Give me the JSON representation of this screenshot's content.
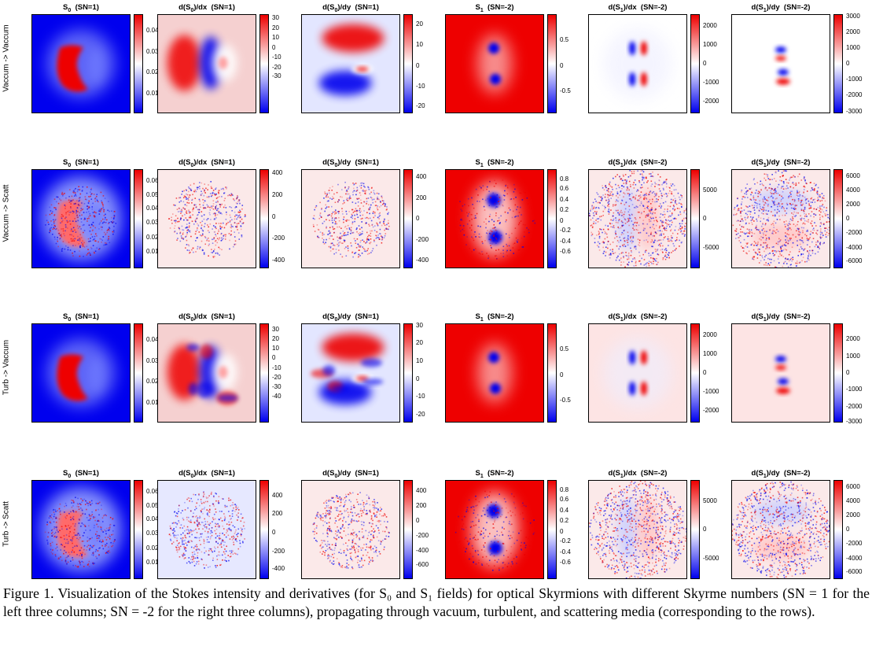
{
  "colors": {
    "positive": "#ee0000",
    "zero": "#ffffff",
    "negative": "#0000ee"
  },
  "rows": [
    {
      "label": "Vaccum -> Vaccum",
      "noise": "smooth",
      "panels": [
        {
          "title_main": "S",
          "title_sub": "0",
          "title_rest": "  (SN=1)",
          "ticks": [
            {
              "label": "0.04",
              "frac": 0.83
            },
            {
              "label": "0.03",
              "frac": 0.62
            },
            {
              "label": "0.02",
              "frac": 0.41
            },
            {
              "label": "0.01",
              "frac": 0.2
            }
          ]
        },
        {
          "title_main": "d(S",
          "title_sub": "0",
          "title_rest": ")/dx  (SN=1)",
          "ticks": [
            {
              "label": "30",
              "frac": 0.96
            },
            {
              "label": "20",
              "frac": 0.86
            },
            {
              "label": "10",
              "frac": 0.76
            },
            {
              "label": "0",
              "frac": 0.66
            },
            {
              "label": "-10",
              "frac": 0.56
            },
            {
              "label": "-20",
              "frac": 0.46
            },
            {
              "label": "-30",
              "frac": 0.37
            }
          ]
        },
        {
          "title_main": "d(S",
          "title_sub": "0",
          "title_rest": ")/dy  (SN=1)",
          "ticks": [
            {
              "label": "20",
              "frac": 0.9
            },
            {
              "label": "10",
              "frac": 0.69
            },
            {
              "label": "0",
              "frac": 0.48
            },
            {
              "label": "-10",
              "frac": 0.27
            },
            {
              "label": "-20",
              "frac": 0.07
            }
          ]
        },
        {
          "title_main": "S",
          "title_sub": "1",
          "title_rest": "  (SN=-2)",
          "ticks": [
            {
              "label": "0.5",
              "frac": 0.74
            },
            {
              "label": "0",
              "frac": 0.48
            },
            {
              "label": "-0.5",
              "frac": 0.22
            }
          ]
        },
        {
          "title_main": "d(S",
          "title_sub": "1",
          "title_rest": ")/dx  (SN=-2)",
          "ticks": [
            {
              "label": "2000",
              "frac": 0.88
            },
            {
              "label": "1000",
              "frac": 0.69
            },
            {
              "label": "0",
              "frac": 0.5
            },
            {
              "label": "-1000",
              "frac": 0.31
            },
            {
              "label": "-2000",
              "frac": 0.12
            }
          ]
        },
        {
          "title_main": "d(S",
          "title_sub": "1",
          "title_rest": ")/dy  (SN=-2)",
          "ticks": [
            {
              "label": "3000",
              "frac": 0.98
            },
            {
              "label": "2000",
              "frac": 0.82
            },
            {
              "label": "1000",
              "frac": 0.66
            },
            {
              "label": "0",
              "frac": 0.5
            },
            {
              "label": "-1000",
              "frac": 0.34
            },
            {
              "label": "-2000",
              "frac": 0.18
            },
            {
              "label": "-3000",
              "frac": 0.02
            }
          ]
        }
      ]
    },
    {
      "label": "Vaccum -> Scatt",
      "noise": "scatter",
      "panels": [
        {
          "title_main": "S",
          "title_sub": "0",
          "title_rest": "  (SN=1)",
          "ticks": [
            {
              "label": "0.06",
              "frac": 0.88
            },
            {
              "label": "0.05",
              "frac": 0.74
            },
            {
              "label": "0.04",
              "frac": 0.6
            },
            {
              "label": "0.03",
              "frac": 0.46
            },
            {
              "label": "0.02",
              "frac": 0.31
            },
            {
              "label": "0.01",
              "frac": 0.17
            }
          ]
        },
        {
          "title_main": "d(S",
          "title_sub": "0",
          "title_rest": ")/dx  (SN=1)",
          "ticks": [
            {
              "label": "400",
              "frac": 0.96
            },
            {
              "label": "200",
              "frac": 0.74
            },
            {
              "label": "0",
              "frac": 0.52
            },
            {
              "label": "-200",
              "frac": 0.3
            },
            {
              "label": "-400",
              "frac": 0.08
            }
          ]
        },
        {
          "title_main": "d(S",
          "title_sub": "0",
          "title_rest": ")/dy  (SN=1)",
          "ticks": [
            {
              "label": "400",
              "frac": 0.92
            },
            {
              "label": "200",
              "frac": 0.71
            },
            {
              "label": "0",
              "frac": 0.5
            },
            {
              "label": "-200",
              "frac": 0.29
            },
            {
              "label": "-400",
              "frac": 0.08
            }
          ]
        },
        {
          "title_main": "S",
          "title_sub": "1",
          "title_rest": "  (SN=-2)",
          "ticks": [
            {
              "label": "0.8",
              "frac": 0.9
            },
            {
              "label": "0.6",
              "frac": 0.8
            },
            {
              "label": "0.4",
              "frac": 0.69
            },
            {
              "label": "0.2",
              "frac": 0.59
            },
            {
              "label": "0",
              "frac": 0.48
            },
            {
              "label": "-0.2",
              "frac": 0.38
            },
            {
              "label": "-0.4",
              "frac": 0.27
            },
            {
              "label": "-0.6",
              "frac": 0.17
            }
          ]
        },
        {
          "title_main": "d(S",
          "title_sub": "1",
          "title_rest": ")/dx  (SN=-2)",
          "ticks": [
            {
              "label": "5000",
              "frac": 0.79
            },
            {
              "label": "0",
              "frac": 0.5
            },
            {
              "label": "-5000",
              "frac": 0.21
            }
          ]
        },
        {
          "title_main": "d(S",
          "title_sub": "1",
          "title_rest": ")/dy  (SN=-2)",
          "ticks": [
            {
              "label": "6000",
              "frac": 0.93
            },
            {
              "label": "4000",
              "frac": 0.79
            },
            {
              "label": "2000",
              "frac": 0.64
            },
            {
              "label": "0",
              "frac": 0.5
            },
            {
              "label": "-2000",
              "frac": 0.36
            },
            {
              "label": "-4000",
              "frac": 0.21
            },
            {
              "label": "-6000",
              "frac": 0.07
            }
          ]
        }
      ]
    },
    {
      "label": "Turb -> Vaccum",
      "noise": "turb",
      "panels": [
        {
          "title_main": "S",
          "title_sub": "0",
          "title_rest": "  (SN=1)",
          "ticks": [
            {
              "label": "0.04",
              "frac": 0.83
            },
            {
              "label": "0.03",
              "frac": 0.62
            },
            {
              "label": "0.02",
              "frac": 0.41
            },
            {
              "label": "0.01",
              "frac": 0.2
            }
          ]
        },
        {
          "title_main": "d(S",
          "title_sub": "0",
          "title_rest": ")/dx  (SN=1)",
          "ticks": [
            {
              "label": "30",
              "frac": 0.94
            },
            {
              "label": "20",
              "frac": 0.84
            },
            {
              "label": "10",
              "frac": 0.75
            },
            {
              "label": "0",
              "frac": 0.65
            },
            {
              "label": "-10",
              "frac": 0.55
            },
            {
              "label": "-20",
              "frac": 0.45
            },
            {
              "label": "-30",
              "frac": 0.36
            },
            {
              "label": "-40",
              "frac": 0.26
            }
          ]
        },
        {
          "title_main": "d(S",
          "title_sub": "0",
          "title_rest": ")/dy  (SN=1)",
          "ticks": [
            {
              "label": "30",
              "frac": 0.98
            },
            {
              "label": "20",
              "frac": 0.8
            },
            {
              "label": "10",
              "frac": 0.62
            },
            {
              "label": "0",
              "frac": 0.44
            },
            {
              "label": "-10",
              "frac": 0.26
            },
            {
              "label": "-20",
              "frac": 0.08
            }
          ]
        },
        {
          "title_main": "S",
          "title_sub": "1",
          "title_rest": "  (SN=-2)",
          "ticks": [
            {
              "label": "0.5",
              "frac": 0.74
            },
            {
              "label": "0",
              "frac": 0.48
            },
            {
              "label": "-0.5",
              "frac": 0.22
            }
          ]
        },
        {
          "title_main": "d(S",
          "title_sub": "1",
          "title_rest": ")/dx  (SN=-2)",
          "ticks": [
            {
              "label": "2000",
              "frac": 0.88
            },
            {
              "label": "1000",
              "frac": 0.69
            },
            {
              "label": "0",
              "frac": 0.5
            },
            {
              "label": "-1000",
              "frac": 0.31
            },
            {
              "label": "-2000",
              "frac": 0.12
            }
          ]
        },
        {
          "title_main": "d(S",
          "title_sub": "1",
          "title_rest": ")/dy  (SN=-2)",
          "ticks": [
            {
              "label": "2000",
              "frac": 0.84
            },
            {
              "label": "1000",
              "frac": 0.67
            },
            {
              "label": "0",
              "frac": 0.5
            },
            {
              "label": "-1000",
              "frac": 0.33
            },
            {
              "label": "-2000",
              "frac": 0.16
            },
            {
              "label": "-3000",
              "frac": 0.01
            }
          ]
        }
      ]
    },
    {
      "label": "Turb -> Scatt",
      "noise": "scatter",
      "panels": [
        {
          "title_main": "S",
          "title_sub": "0",
          "title_rest": "  (SN=1)",
          "ticks": [
            {
              "label": "0.06",
              "frac": 0.88
            },
            {
              "label": "0.05",
              "frac": 0.74
            },
            {
              "label": "0.04",
              "frac": 0.6
            },
            {
              "label": "0.03",
              "frac": 0.46
            },
            {
              "label": "0.02",
              "frac": 0.31
            },
            {
              "label": "0.01",
              "frac": 0.17
            }
          ]
        },
        {
          "title_main": "d(S",
          "title_sub": "0",
          "title_rest": ")/dx  (SN=1)",
          "ticks": [
            {
              "label": "400",
              "frac": 0.84
            },
            {
              "label": "200",
              "frac": 0.66
            },
            {
              "label": "0",
              "frac": 0.47
            },
            {
              "label": "-200",
              "frac": 0.28
            },
            {
              "label": "-400",
              "frac": 0.1
            }
          ]
        },
        {
          "title_main": "d(S",
          "title_sub": "0",
          "title_rest": ")/dy  (SN=1)",
          "ticks": [
            {
              "label": "400",
              "frac": 0.89
            },
            {
              "label": "200",
              "frac": 0.74
            },
            {
              "label": "0",
              "frac": 0.59
            },
            {
              "label": "-200",
              "frac": 0.44
            },
            {
              "label": "-400",
              "frac": 0.29
            },
            {
              "label": "-600",
              "frac": 0.14
            }
          ]
        },
        {
          "title_main": "S",
          "title_sub": "1",
          "title_rest": "  (SN=-2)",
          "ticks": [
            {
              "label": "0.8",
              "frac": 0.9
            },
            {
              "label": "0.6",
              "frac": 0.8
            },
            {
              "label": "0.4",
              "frac": 0.69
            },
            {
              "label": "0.2",
              "frac": 0.59
            },
            {
              "label": "0",
              "frac": 0.48
            },
            {
              "label": "-0.2",
              "frac": 0.38
            },
            {
              "label": "-0.4",
              "frac": 0.27
            },
            {
              "label": "-0.6",
              "frac": 0.17
            }
          ]
        },
        {
          "title_main": "d(S",
          "title_sub": "1",
          "title_rest": ")/dx  (SN=-2)",
          "ticks": [
            {
              "label": "5000",
              "frac": 0.79
            },
            {
              "label": "0",
              "frac": 0.5
            },
            {
              "label": "-5000",
              "frac": 0.21
            }
          ]
        },
        {
          "title_main": "d(S",
          "title_sub": "1",
          "title_rest": ")/dy  (SN=-2)",
          "ticks": [
            {
              "label": "6000",
              "frac": 0.93
            },
            {
              "label": "4000",
              "frac": 0.79
            },
            {
              "label": "2000",
              "frac": 0.64
            },
            {
              "label": "0",
              "frac": 0.5
            },
            {
              "label": "-2000",
              "frac": 0.36
            },
            {
              "label": "-4000",
              "frac": 0.21
            },
            {
              "label": "-6000",
              "frac": 0.07
            }
          ]
        }
      ]
    }
  ],
  "caption": "Figure 1. Visualization of the Stokes intensity and derivatives (for S₀ and S₁ fields) for optical Skyrmions with different Skyrme numbers (SN = 1 for the left three columns; SN = -2 for the right three columns), propagating through vacuum, turbulent, and scattering media (corresponding to the rows)."
}
